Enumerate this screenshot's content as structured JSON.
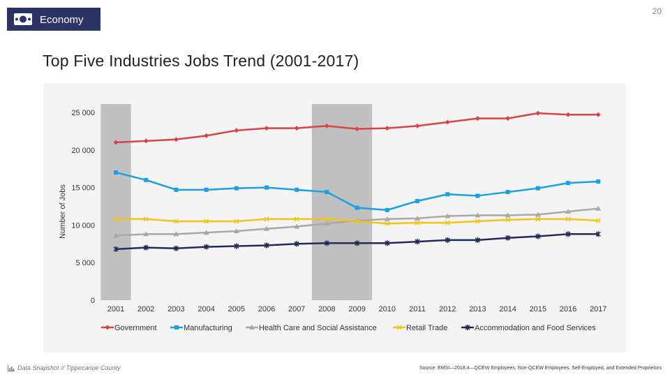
{
  "header": {
    "section_label": "Economy",
    "section_icon": "money-icon",
    "page_number": "20",
    "badge_color": "#2c3466"
  },
  "slide_title": "Top Five Industries Jobs Trend (2001-2017)",
  "footer": {
    "left_text": "Data Snapshot // Tippecanoe County",
    "left_icon": "bar-chart-icon",
    "right_text": "Source: EMSI—2018.4—QCEW Employees, Non-QCEW Employees, Self-Employed, and Extended Proprietors"
  },
  "chart_data": {
    "type": "line",
    "title": "",
    "xlabel": "",
    "ylabel": "Number of Jobs",
    "ylim": [
      0,
      25000
    ],
    "yticks": [
      0,
      5000,
      10000,
      15000,
      20000,
      25000
    ],
    "ytick_labels": [
      "0",
      "5 000",
      "10 000",
      "15 000",
      "20 000",
      "25 000"
    ],
    "categories": [
      "2001",
      "2002",
      "2003",
      "2004",
      "2005",
      "2006",
      "2007",
      "2008",
      "2009",
      "2010",
      "2011",
      "2012",
      "2013",
      "2014",
      "2015",
      "2016",
      "2017"
    ],
    "shaded_periods": [
      [
        "2001",
        "2001"
      ],
      [
        "2008",
        "2009"
      ]
    ],
    "shade_color": "#c0c0c0",
    "legend_position": "bottom",
    "series": [
      {
        "name": "Government",
        "color": "#d64545",
        "marker": "diamond",
        "values": [
          21000,
          21200,
          21400,
          21900,
          22600,
          22900,
          22900,
          23200,
          22800,
          22900,
          23200,
          23700,
          24200,
          24200,
          24900,
          24700,
          24700
        ]
      },
      {
        "name": "Manufacturing",
        "color": "#1aa0e0",
        "marker": "square",
        "values": [
          17000,
          16000,
          14700,
          14700,
          14900,
          15000,
          14700,
          14400,
          12300,
          12000,
          13200,
          14100,
          13900,
          14400,
          14900,
          15600,
          15800
        ]
      },
      {
        "name": "Health Care and Social Assistance",
        "color": "#a8a8a8",
        "marker": "triangle",
        "values": [
          8600,
          8800,
          8800,
          9000,
          9200,
          9500,
          9800,
          10200,
          10600,
          10800,
          10900,
          11200,
          11300,
          11300,
          11400,
          11800,
          12200
        ]
      },
      {
        "name": "Retail Trade",
        "color": "#f2c318",
        "marker": "x",
        "values": [
          10800,
          10800,
          10500,
          10500,
          10500,
          10800,
          10800,
          10800,
          10500,
          10200,
          10300,
          10300,
          10500,
          10700,
          10800,
          10800,
          10600
        ]
      },
      {
        "name": "Accommodation and Food Services",
        "color": "#222a5a",
        "marker": "star",
        "values": [
          6800,
          7000,
          6900,
          7100,
          7200,
          7300,
          7500,
          7600,
          7600,
          7600,
          7800,
          8000,
          8000,
          8300,
          8500,
          8800,
          8800
        ]
      }
    ]
  }
}
